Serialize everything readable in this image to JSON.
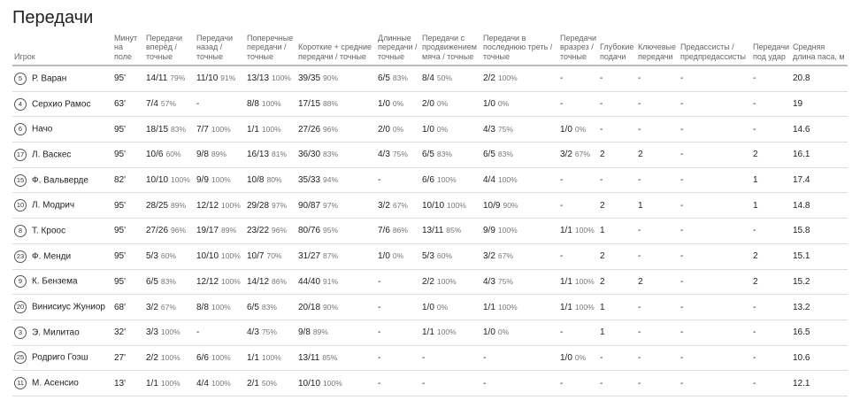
{
  "header": {
    "title": "Передачи"
  },
  "table": {
    "columns": [
      "Игрок",
      "Минут на поле",
      "Передачи вперёд / точные",
      "Передачи назад / точные",
      "Поперечные передачи / точные",
      "Короткие + средние передачи / точные",
      "Длинные передачи / точные",
      "Передачи с продвижением мяча / точные",
      "Передачи в последнюю треть / точные",
      "Передачи вразрез / точные",
      "Глубокие подачи",
      "Ключевые передачи",
      "Предассисты / предпредассисты",
      "Передачи под удар",
      "Средняя длина паса, м"
    ],
    "rows": [
      {
        "number": "5",
        "name": "Р. Варан",
        "minutes": "95'",
        "cells": [
          {
            "v": "14/11",
            "p": "79%"
          },
          {
            "v": "11/10",
            "p": "91%"
          },
          {
            "v": "13/13",
            "p": "100%"
          },
          {
            "v": "39/35",
            "p": "90%"
          },
          {
            "v": "6/5",
            "p": "83%"
          },
          {
            "v": "8/4",
            "p": "50%"
          },
          {
            "v": "2/2",
            "p": "100%"
          },
          "-",
          "-",
          "-",
          "-",
          "-",
          "20.8"
        ]
      },
      {
        "number": "4",
        "name": "Серхио Рамос",
        "minutes": "63'",
        "cells": [
          {
            "v": "7/4",
            "p": "57%"
          },
          "-",
          {
            "v": "8/8",
            "p": "100%"
          },
          {
            "v": "17/15",
            "p": "88%"
          },
          {
            "v": "1/0",
            "p": "0%"
          },
          {
            "v": "2/0",
            "p": "0%"
          },
          {
            "v": "1/0",
            "p": "0%"
          },
          "-",
          "-",
          "-",
          "-",
          "-",
          "19"
        ]
      },
      {
        "number": "6",
        "name": "Начо",
        "minutes": "95'",
        "cells": [
          {
            "v": "18/15",
            "p": "83%"
          },
          {
            "v": "7/7",
            "p": "100%"
          },
          {
            "v": "1/1",
            "p": "100%"
          },
          {
            "v": "27/26",
            "p": "96%"
          },
          {
            "v": "2/0",
            "p": "0%"
          },
          {
            "v": "1/0",
            "p": "0%"
          },
          {
            "v": "4/3",
            "p": "75%"
          },
          {
            "v": "1/0",
            "p": "0%"
          },
          "-",
          "-",
          "-",
          "-",
          "14.6"
        ]
      },
      {
        "number": "17",
        "name": "Л. Васкес",
        "minutes": "95'",
        "cells": [
          {
            "v": "10/6",
            "p": "60%"
          },
          {
            "v": "9/8",
            "p": "89%"
          },
          {
            "v": "16/13",
            "p": "81%"
          },
          {
            "v": "36/30",
            "p": "83%"
          },
          {
            "v": "4/3",
            "p": "75%"
          },
          {
            "v": "6/5",
            "p": "83%"
          },
          {
            "v": "6/5",
            "p": "83%"
          },
          {
            "v": "3/2",
            "p": "67%"
          },
          "2",
          "2",
          "-",
          "2",
          "16.1"
        ]
      },
      {
        "number": "15",
        "name": "Ф. Вальверде",
        "minutes": "82'",
        "cells": [
          {
            "v": "10/10",
            "p": "100%"
          },
          {
            "v": "9/9",
            "p": "100%"
          },
          {
            "v": "10/8",
            "p": "80%"
          },
          {
            "v": "35/33",
            "p": "94%"
          },
          "-",
          {
            "v": "6/6",
            "p": "100%"
          },
          {
            "v": "4/4",
            "p": "100%"
          },
          "-",
          "-",
          "-",
          "-",
          "1",
          "17.4"
        ]
      },
      {
        "number": "10",
        "name": "Л. Модрич",
        "minutes": "95'",
        "cells": [
          {
            "v": "28/25",
            "p": "89%"
          },
          {
            "v": "12/12",
            "p": "100%"
          },
          {
            "v": "29/28",
            "p": "97%"
          },
          {
            "v": "90/87",
            "p": "97%"
          },
          {
            "v": "3/2",
            "p": "67%"
          },
          {
            "v": "10/10",
            "p": "100%"
          },
          {
            "v": "10/9",
            "p": "90%"
          },
          "-",
          "2",
          "1",
          "-",
          "1",
          "14.8"
        ]
      },
      {
        "number": "8",
        "name": "Т. Кроос",
        "minutes": "95'",
        "cells": [
          {
            "v": "27/26",
            "p": "96%"
          },
          {
            "v": "19/17",
            "p": "89%"
          },
          {
            "v": "23/22",
            "p": "96%"
          },
          {
            "v": "80/76",
            "p": "95%"
          },
          {
            "v": "7/6",
            "p": "86%"
          },
          {
            "v": "13/11",
            "p": "85%"
          },
          {
            "v": "9/9",
            "p": "100%"
          },
          {
            "v": "1/1",
            "p": "100%"
          },
          "1",
          "-",
          "-",
          "-",
          "15.8"
        ]
      },
      {
        "number": "23",
        "name": "Ф. Менди",
        "minutes": "95'",
        "cells": [
          {
            "v": "5/3",
            "p": "60%"
          },
          {
            "v": "10/10",
            "p": "100%"
          },
          {
            "v": "10/7",
            "p": "70%"
          },
          {
            "v": "31/27",
            "p": "87%"
          },
          {
            "v": "1/0",
            "p": "0%"
          },
          {
            "v": "5/3",
            "p": "60%"
          },
          {
            "v": "3/2",
            "p": "67%"
          },
          "-",
          "2",
          "-",
          "-",
          "2",
          "15.1"
        ]
      },
      {
        "number": "9",
        "name": "К. Бензема",
        "minutes": "95'",
        "cells": [
          {
            "v": "6/5",
            "p": "83%"
          },
          {
            "v": "12/12",
            "p": "100%"
          },
          {
            "v": "14/12",
            "p": "86%"
          },
          {
            "v": "44/40",
            "p": "91%"
          },
          "-",
          {
            "v": "2/2",
            "p": "100%"
          },
          {
            "v": "4/3",
            "p": "75%"
          },
          {
            "v": "1/1",
            "p": "100%"
          },
          "2",
          "2",
          "-",
          "2",
          "15.2"
        ]
      },
      {
        "number": "20",
        "name": "Винисиус Жуниор",
        "minutes": "68'",
        "cells": [
          {
            "v": "3/2",
            "p": "67%"
          },
          {
            "v": "8/8",
            "p": "100%"
          },
          {
            "v": "6/5",
            "p": "83%"
          },
          {
            "v": "20/18",
            "p": "90%"
          },
          "-",
          {
            "v": "1/0",
            "p": "0%"
          },
          {
            "v": "1/1",
            "p": "100%"
          },
          {
            "v": "1/1",
            "p": "100%"
          },
          "1",
          "-",
          "-",
          "-",
          "13.2"
        ]
      },
      {
        "number": "3",
        "name": "Э. Милитао",
        "minutes": "32'",
        "cells": [
          {
            "v": "3/3",
            "p": "100%"
          },
          "-",
          {
            "v": "4/3",
            "p": "75%"
          },
          {
            "v": "9/8",
            "p": "89%"
          },
          "-",
          {
            "v": "1/1",
            "p": "100%"
          },
          {
            "v": "1/0",
            "p": "0%"
          },
          "-",
          "1",
          "-",
          "-",
          "-",
          "16.5"
        ]
      },
      {
        "number": "25",
        "name": "Родриго Гоэш",
        "minutes": "27'",
        "cells": [
          {
            "v": "2/2",
            "p": "100%"
          },
          {
            "v": "6/6",
            "p": "100%"
          },
          {
            "v": "1/1",
            "p": "100%"
          },
          {
            "v": "13/11",
            "p": "85%"
          },
          "-",
          "-",
          "-",
          {
            "v": "1/0",
            "p": "0%"
          },
          "-",
          "-",
          "-",
          "-",
          "10.6"
        ]
      },
      {
        "number": "11",
        "name": "М. Асенсио",
        "minutes": "13'",
        "cells": [
          {
            "v": "1/1",
            "p": "100%"
          },
          {
            "v": "4/4",
            "p": "100%"
          },
          {
            "v": "2/1",
            "p": "50%"
          },
          {
            "v": "10/10",
            "p": "100%"
          },
          "-",
          "-",
          "-",
          "-",
          "-",
          "-",
          "-",
          "-",
          "12.1"
        ]
      }
    ]
  }
}
